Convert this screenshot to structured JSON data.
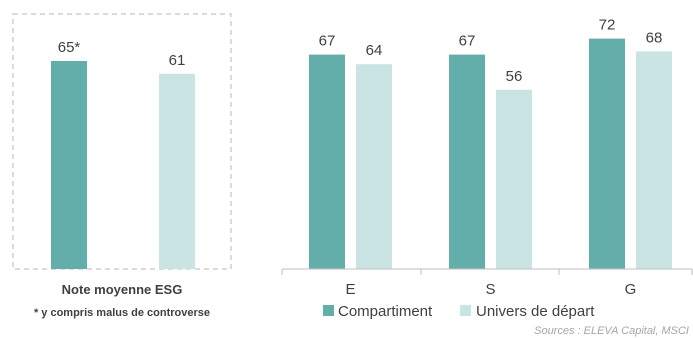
{
  "chart_data": [
    {
      "type": "bar",
      "categories": [
        ""
      ],
      "series": [
        {
          "values": [
            65
          ]
        },
        {
          "values": [
            61
          ]
        }
      ],
      "value_labels": [
        "65*",
        "61"
      ],
      "xlabel": "Note moyenne ESG",
      "ylim": [
        0,
        100
      ],
      "grid": false
    },
    {
      "type": "bar",
      "categories": [
        "E",
        "S",
        "G"
      ],
      "series": [
        {
          "name": "Compartiment",
          "values": [
            67,
            67,
            72
          ]
        },
        {
          "name": "Univers de départ",
          "values": [
            64,
            56,
            68
          ]
        }
      ],
      "ylim": [
        0,
        100
      ],
      "grid": false,
      "legend": "bottom"
    }
  ],
  "footnote": "* y compris malus de controverse",
  "source": "Sources : ELEVA Capital, MSCI",
  "colors": {
    "compartiment": "#63aeab",
    "univers": "#c9e4e3",
    "text": "#404040",
    "axis": "#bfbfbf"
  }
}
